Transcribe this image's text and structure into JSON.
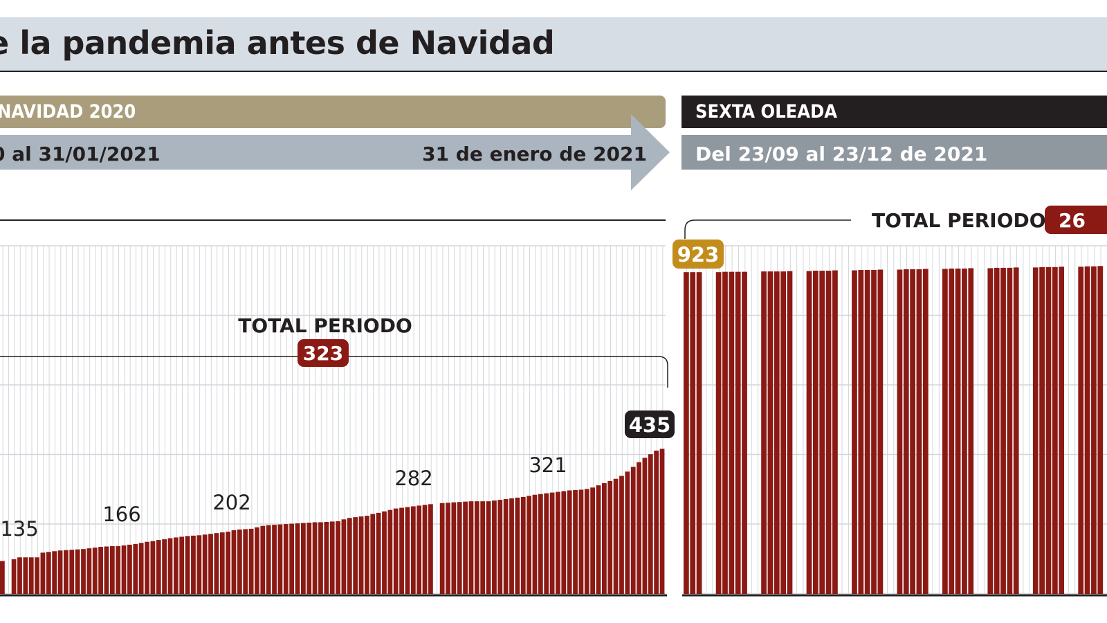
{
  "header": {
    "title": "e la pandemia antes de Navidad"
  },
  "periods": {
    "left": {
      "label": "NAVIDAD 2020",
      "range": "0 al 31/01/2021",
      "end_date": "31 de enero de 2021"
    },
    "right": {
      "label": "SEXTA OLEADA",
      "range": "Del 23/09 al 23/12 de 2021"
    }
  },
  "colors": {
    "bar": "#8b1a14",
    "badge_red": "#8b1a14",
    "badge_gold": "#c38d1c",
    "badge_black": "#231f20",
    "title_bg": "#d6dde4",
    "navidad_band": "#a99d7b",
    "arrow": "#abb5bf",
    "sexta_band": "#231f20",
    "range_band": "#8f979f"
  },
  "chart_data": [
    {
      "type": "bar",
      "title": "",
      "ylim": [
        34,
        996
      ],
      "grid": true,
      "total_label": "TOTAL PERIODO",
      "total_value": "323",
      "values": [
        125,
        null,
        130,
        135,
        135,
        135,
        135,
        148,
        150,
        152,
        154,
        155,
        156,
        157,
        158,
        160,
        162,
        164,
        165,
        166,
        166,
        168,
        170,
        172,
        175,
        178,
        180,
        183,
        185,
        188,
        190,
        192,
        194,
        195,
        196,
        198,
        200,
        202,
        204,
        206,
        210,
        212,
        213,
        214,
        218,
        222,
        224,
        225,
        226,
        227,
        228,
        229,
        230,
        231,
        232,
        232,
        233,
        234,
        235,
        240,
        244,
        246,
        248,
        250,
        255,
        258,
        262,
        266,
        270,
        272,
        274,
        276,
        278,
        280,
        282,
        null,
        285,
        286,
        287,
        288,
        289,
        290,
        290,
        290,
        290,
        292,
        294,
        296,
        298,
        300,
        302,
        305,
        308,
        310,
        312,
        314,
        316,
        318,
        320,
        321,
        322,
        324,
        328,
        334,
        340,
        346,
        352,
        360,
        372,
        385,
        398,
        410,
        420,
        430,
        435
      ],
      "annotations": [
        {
          "label": "135",
          "value": 135
        },
        {
          "label": "166",
          "value": 166
        },
        {
          "label": "202",
          "value": 202
        },
        {
          "label": "282",
          "value": 282
        },
        {
          "label": "321",
          "value": 321
        },
        {
          "label": "435",
          "value": 435
        }
      ]
    },
    {
      "type": "bar",
      "title": "",
      "ylim": [
        34,
        996
      ],
      "grid": true,
      "total_label": "TOTAL PERIODO",
      "total_value": "26",
      "values": [
        923,
        923,
        923,
        null,
        null,
        923,
        924,
        924,
        924,
        924,
        null,
        null,
        925,
        925,
        925,
        925,
        926,
        null,
        null,
        926,
        927,
        927,
        927,
        928,
        null,
        null,
        928,
        929,
        929,
        929,
        930,
        null,
        null,
        930,
        931,
        931,
        931,
        932,
        null,
        null,
        932,
        933,
        933,
        933,
        934,
        null,
        null,
        934,
        935,
        935,
        935,
        936,
        null,
        null,
        936,
        937,
        937,
        937,
        938,
        null,
        null,
        938,
        939,
        939,
        940,
        null
      ],
      "annotations": [
        {
          "label": "923",
          "value": 923
        }
      ]
    }
  ]
}
